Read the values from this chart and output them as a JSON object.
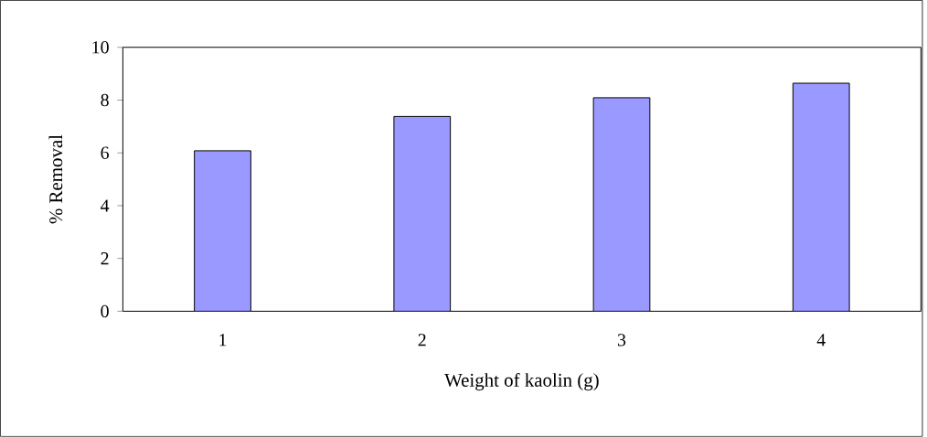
{
  "chart_data": {
    "type": "bar",
    "xlabel": "Weight of kaolin (g)",
    "ylabel": "% Removal",
    "categories": [
      "1",
      "2",
      "3",
      "4"
    ],
    "values": [
      6.08,
      7.38,
      8.09,
      8.64
    ],
    "color": "#9999ff",
    "ylim": [
      0,
      10
    ],
    "yticks": [
      0,
      2,
      4,
      6,
      8,
      10
    ]
  }
}
